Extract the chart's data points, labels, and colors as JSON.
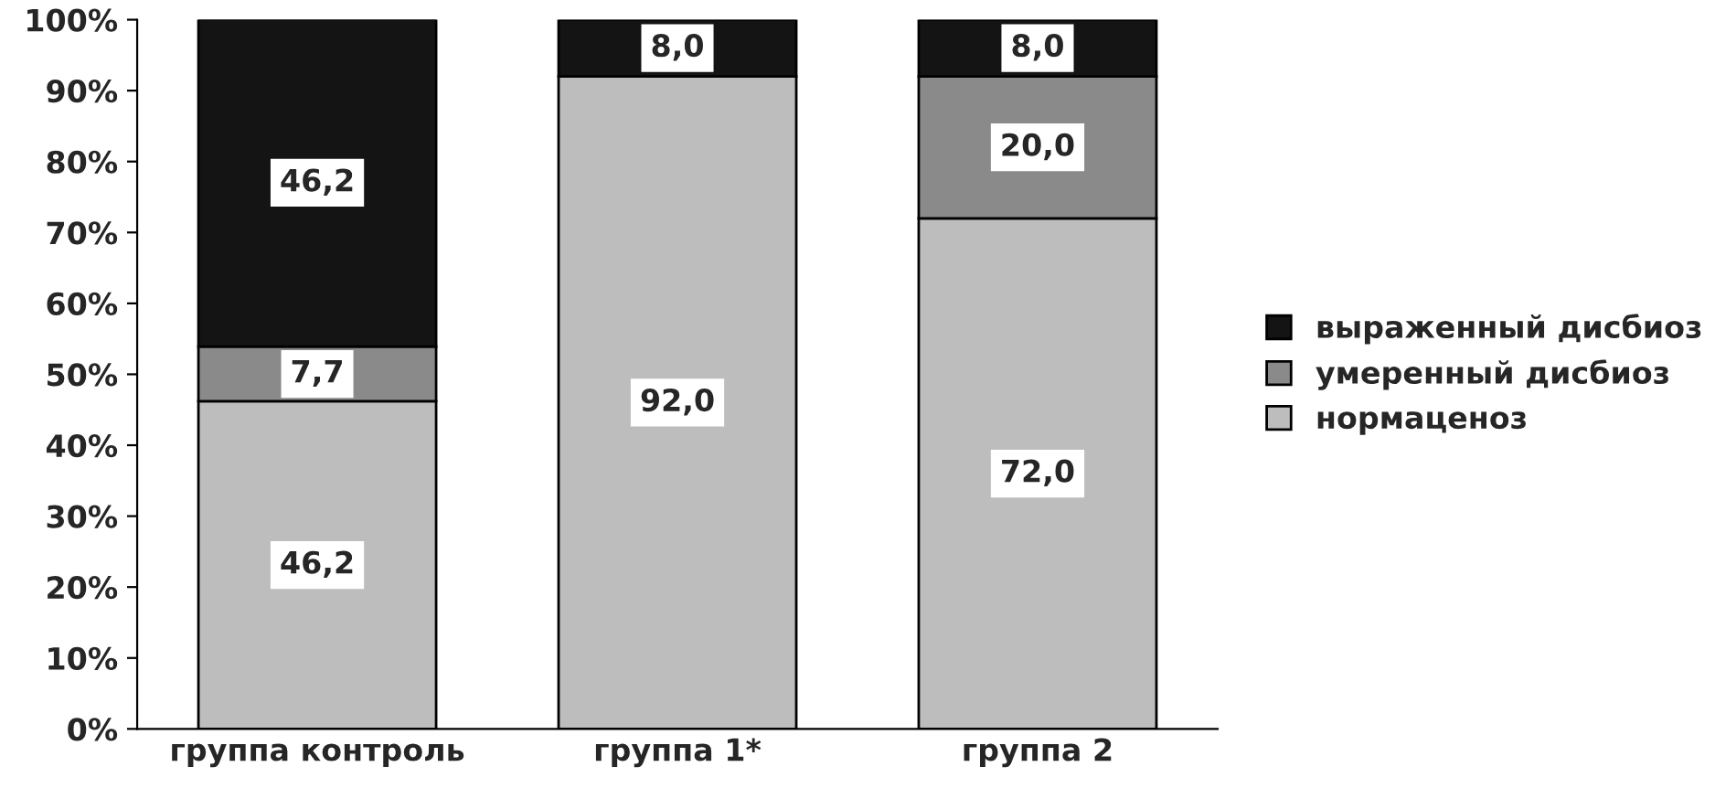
{
  "chart_data": {
    "type": "bar",
    "stacked": true,
    "categories": [
      "группа контроль",
      "группа 1*",
      "группа 2"
    ],
    "series": [
      {
        "name": "нормаценоз",
        "color": "#bdbdbd",
        "values": [
          46.2,
          92.0,
          72.0
        ],
        "value_labels": [
          "46,2",
          "92,0",
          "72,0"
        ]
      },
      {
        "name": "умеренный дисбиоз",
        "color": "#8a8a8a",
        "values": [
          7.7,
          0,
          20.0
        ],
        "value_labels": [
          "7,7",
          null,
          "20,0"
        ]
      },
      {
        "name": "выраженный дисбиоз",
        "color": "#141414",
        "values": [
          46.2,
          8.0,
          8.0
        ],
        "value_labels": [
          "46,2",
          "8,0",
          "8,0"
        ]
      }
    ],
    "ylim": [
      0,
      100
    ],
    "yticks": [
      {
        "value": 0,
        "label": "0%"
      },
      {
        "value": 10,
        "label": "10%"
      },
      {
        "value": 20,
        "label": "20%"
      },
      {
        "value": 30,
        "label": "30%"
      },
      {
        "value": 40,
        "label": "40%"
      },
      {
        "value": 50,
        "label": "50%"
      },
      {
        "value": 60,
        "label": "60%"
      },
      {
        "value": 70,
        "label": "70%"
      },
      {
        "value": 80,
        "label": "80%"
      },
      {
        "value": 90,
        "label": "90%"
      },
      {
        "value": 100,
        "label": "100%"
      }
    ],
    "grid": false,
    "legend": "right"
  }
}
